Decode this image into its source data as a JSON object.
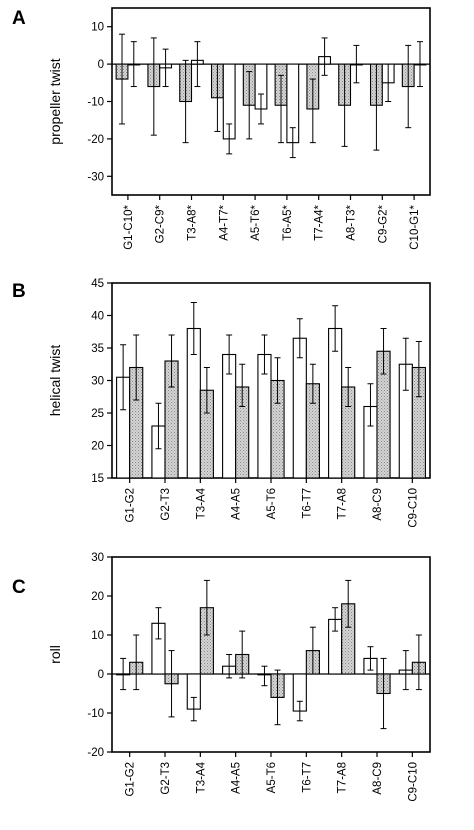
{
  "figure": {
    "colors": {
      "open_bar": "#ffffff",
      "shaded_bar": "#c8c8c8",
      "stroke": "#000000"
    }
  },
  "chart_data": [
    {
      "panel": "A",
      "type": "bar",
      "ylabel": "propeller twist",
      "ylim": [
        -35,
        15
      ],
      "yticks": [
        10,
        0,
        -10,
        -20,
        -30
      ],
      "categories": [
        "G1-C10*",
        "G2-C9*",
        "T3-A8*",
        "A4-T7*",
        "A5-T6*",
        "T6-A5*",
        "T7-A4*",
        "A8-T3*",
        "C9-G2*",
        "C10-G1*"
      ],
      "series": [
        {
          "style": "shaded",
          "values": [
            -4,
            -6,
            -10,
            -9,
            -11,
            -11,
            -12,
            -11,
            -11,
            -6
          ],
          "err_low": [
            -16,
            -19,
            -21,
            -18,
            -20,
            -21,
            -21,
            -22,
            -23,
            -17
          ],
          "err_high": [
            8,
            7,
            1,
            0,
            -2,
            -3,
            -4,
            0,
            0,
            5
          ]
        },
        {
          "style": "open",
          "values": [
            0,
            -1,
            1,
            -20,
            -12,
            -21,
            2,
            0,
            -5,
            0
          ],
          "err_low": [
            -6,
            -6,
            -6,
            -24,
            -16,
            -25,
            -3,
            -5,
            -10,
            -6
          ],
          "err_high": [
            6,
            4,
            6,
            -16,
            -8,
            -17,
            7,
            5,
            0,
            6
          ]
        }
      ]
    },
    {
      "panel": "B",
      "type": "bar",
      "ylabel": "helical twist",
      "ylim": [
        15,
        45
      ],
      "yticks": [
        45,
        40,
        35,
        30,
        25,
        20,
        15
      ],
      "categories": [
        "G1-G2",
        "G2-T3",
        "T3-A4",
        "A4-A5",
        "A5-T6",
        "T6-T7",
        "T7-A8",
        "A8-C9",
        "C9-C10"
      ],
      "series": [
        {
          "style": "open",
          "values": [
            30.5,
            23,
            38,
            34,
            34,
            36.5,
            38,
            26,
            32.5
          ],
          "err_low": [
            25.5,
            19.5,
            34,
            31,
            31,
            33.5,
            34.5,
            23,
            28.5
          ],
          "err_high": [
            35.5,
            26.5,
            42,
            37,
            37,
            39.5,
            41.5,
            29.5,
            36.5
          ]
        },
        {
          "style": "shaded",
          "values": [
            32,
            33,
            28.5,
            29,
            30,
            29.5,
            29,
            34.5,
            32
          ],
          "err_low": [
            27,
            29,
            25,
            26,
            26.5,
            26.5,
            26,
            31,
            27.5
          ],
          "err_high": [
            37,
            37,
            32,
            32.5,
            33.5,
            32.5,
            32,
            38,
            36
          ]
        }
      ]
    },
    {
      "panel": "C",
      "type": "bar",
      "ylabel": "roll",
      "ylim": [
        -20,
        30
      ],
      "yticks": [
        30,
        20,
        10,
        0,
        -10,
        -20
      ],
      "categories": [
        "G1-G2",
        "G2-T3",
        "T3-A4",
        "A4-A5",
        "A5-T6",
        "T6-T7",
        "T7-A8",
        "A8-C9",
        "C9-C10"
      ],
      "series": [
        {
          "style": "open",
          "values": [
            0,
            13,
            -9,
            2,
            0,
            -9.5,
            14,
            4,
            1
          ],
          "err_low": [
            -4,
            9,
            -12,
            -1,
            -3,
            -12,
            11,
            1,
            -4
          ],
          "err_high": [
            4,
            17,
            -6,
            5,
            2,
            -7,
            17,
            7,
            6
          ]
        },
        {
          "style": "shaded",
          "values": [
            3,
            -2.5,
            17,
            5,
            -6,
            6,
            18,
            -5,
            3
          ],
          "err_low": [
            -4,
            -11,
            10,
            -1,
            -13,
            0,
            12,
            -14,
            -4
          ],
          "err_high": [
            10,
            6,
            24,
            11,
            1,
            12,
            24,
            4,
            10
          ]
        }
      ]
    }
  ]
}
